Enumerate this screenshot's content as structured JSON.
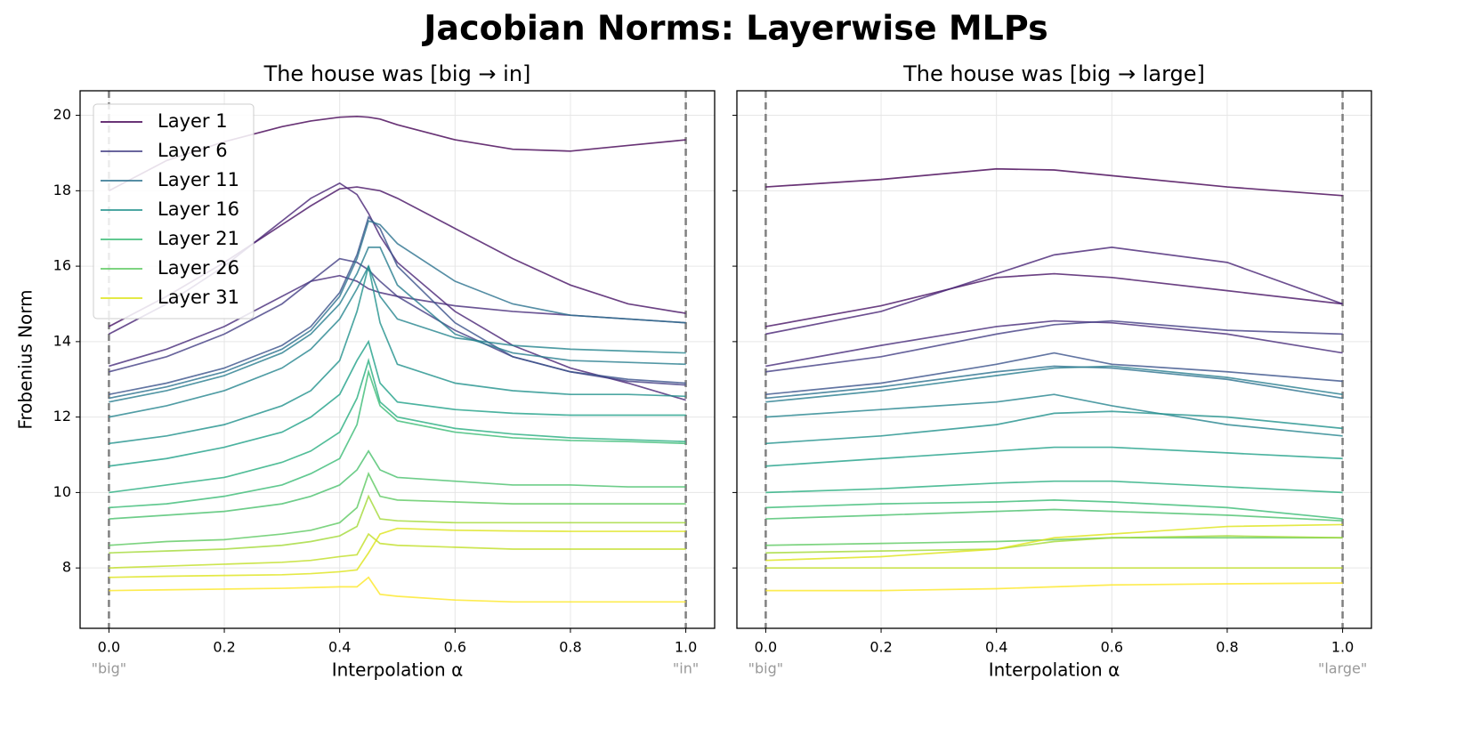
{
  "title": "Jacobian Norms: Layerwise MLPs",
  "chart_data": [
    {
      "type": "line",
      "title": "The house was [big → in]",
      "xlabel": "Interpolation α",
      "ylabel": "Frobenius Norm",
      "xlim": [
        -0.05,
        1.05
      ],
      "ylim": [
        6.4,
        20.65
      ],
      "xticks": [
        {
          "value": 0,
          "label": "0.0"
        },
        {
          "value": 0.2,
          "label": "0.2"
        },
        {
          "value": 0.4,
          "label": "0.4"
        },
        {
          "value": 0.6,
          "label": "0.6"
        },
        {
          "value": 0.8,
          "label": "0.8"
        },
        {
          "value": 1,
          "label": "1.0"
        }
      ],
      "yticks": [
        8,
        10,
        12,
        14,
        16,
        18,
        20
      ],
      "show_ytick_labels": true,
      "grid": true,
      "legend": "upper left",
      "vlines": [
        0,
        1
      ],
      "annotations": [
        {
          "x": 0,
          "text": "\"big\""
        },
        {
          "x": 1,
          "text": "\"in\""
        }
      ],
      "x": [
        0,
        0.1,
        0.2,
        0.3,
        0.35,
        0.4,
        0.43,
        0.45,
        0.47,
        0.5,
        0.6,
        0.7,
        0.8,
        0.9,
        1.0
      ],
      "series": [
        {
          "name": "Layer 1",
          "color": "#440154",
          "values": [
            18.0,
            18.8,
            19.3,
            19.7,
            19.85,
            19.95,
            19.97,
            19.95,
            19.9,
            19.75,
            19.35,
            19.1,
            19.05,
            19.2,
            19.35
          ]
        },
        {
          "color": "#471365",
          "values": [
            14.4,
            15.2,
            16.1,
            17.1,
            17.6,
            18.05,
            18.1,
            18.05,
            18.0,
            17.8,
            17.0,
            16.2,
            15.5,
            15.0,
            14.75
          ]
        },
        {
          "color": "#482475",
          "values": [
            14.2,
            15.0,
            16.0,
            17.2,
            17.8,
            18.2,
            17.9,
            17.4,
            16.8,
            16.1,
            14.8,
            13.9,
            13.3,
            12.9,
            12.45
          ]
        },
        {
          "color": "#472c7a",
          "values": [
            13.35,
            13.8,
            14.4,
            15.2,
            15.6,
            15.75,
            15.6,
            15.4,
            15.3,
            15.2,
            14.95,
            14.8,
            14.7,
            14.6,
            14.5
          ]
        },
        {
          "name": "Layer 6",
          "color": "#433e85",
          "values": [
            13.2,
            13.6,
            14.2,
            15.0,
            15.6,
            16.2,
            16.1,
            15.9,
            15.6,
            15.2,
            14.3,
            13.6,
            13.2,
            12.95,
            12.85
          ]
        },
        {
          "color": "#3b528b",
          "values": [
            12.6,
            12.9,
            13.3,
            13.9,
            14.4,
            15.3,
            16.3,
            17.3,
            17.0,
            16.0,
            14.5,
            13.6,
            13.2,
            13.0,
            12.9
          ]
        },
        {
          "name": "Layer 11",
          "color": "#2c728e",
          "values": [
            12.5,
            12.8,
            13.2,
            13.8,
            14.3,
            15.2,
            16.2,
            17.2,
            17.1,
            16.6,
            15.6,
            15.0,
            14.7,
            14.6,
            14.5
          ]
        },
        {
          "color": "#287d8e",
          "values": [
            12.4,
            12.7,
            13.1,
            13.7,
            14.2,
            15.0,
            15.8,
            16.5,
            16.5,
            15.5,
            14.2,
            13.7,
            13.5,
            13.45,
            13.4
          ]
        },
        {
          "color": "#25858e",
          "values": [
            12.0,
            12.3,
            12.7,
            13.3,
            13.8,
            14.6,
            15.4,
            16.0,
            15.2,
            14.6,
            14.1,
            13.9,
            13.8,
            13.75,
            13.7
          ]
        },
        {
          "name": "Layer 16",
          "color": "#21918c",
          "values": [
            11.3,
            11.5,
            11.8,
            12.3,
            12.7,
            13.5,
            14.8,
            16.0,
            14.5,
            13.4,
            12.9,
            12.7,
            12.6,
            12.6,
            12.55
          ]
        },
        {
          "color": "#1fa088",
          "values": [
            10.7,
            10.9,
            11.2,
            11.6,
            12.0,
            12.6,
            13.5,
            14.0,
            12.9,
            12.4,
            12.2,
            12.1,
            12.05,
            12.05,
            12.05
          ]
        },
        {
          "color": "#28ae80",
          "values": [
            10.0,
            10.2,
            10.4,
            10.8,
            11.1,
            11.6,
            12.5,
            13.5,
            12.4,
            12.0,
            11.7,
            11.55,
            11.45,
            11.4,
            11.35
          ]
        },
        {
          "name": "Layer 21",
          "color": "#3bbb75",
          "values": [
            9.6,
            9.7,
            9.9,
            10.2,
            10.5,
            10.9,
            11.8,
            13.2,
            12.3,
            11.9,
            11.6,
            11.45,
            11.38,
            11.35,
            11.3
          ]
        },
        {
          "color": "#4ac16d",
          "values": [
            9.3,
            9.4,
            9.5,
            9.7,
            9.9,
            10.2,
            10.6,
            11.1,
            10.6,
            10.4,
            10.3,
            10.2,
            10.2,
            10.15,
            10.15
          ]
        },
        {
          "name": "Layer 26",
          "color": "#5ec962",
          "values": [
            8.6,
            8.7,
            8.75,
            8.9,
            9.0,
            9.2,
            9.6,
            10.5,
            9.9,
            9.8,
            9.75,
            9.7,
            9.7,
            9.7,
            9.7
          ]
        },
        {
          "color": "#a2da37",
          "values": [
            8.4,
            8.45,
            8.5,
            8.6,
            8.7,
            8.85,
            9.1,
            9.9,
            9.3,
            9.25,
            9.2,
            9.2,
            9.2,
            9.2,
            9.2
          ]
        },
        {
          "color": "#c0df25",
          "values": [
            8.0,
            8.05,
            8.1,
            8.15,
            8.2,
            8.3,
            8.35,
            8.9,
            8.65,
            8.6,
            8.55,
            8.5,
            8.5,
            8.5,
            8.5
          ]
        },
        {
          "name": "Layer 31",
          "color": "#dde318",
          "values": [
            7.75,
            7.78,
            7.8,
            7.82,
            7.85,
            7.9,
            7.95,
            8.4,
            8.9,
            9.05,
            9.0,
            8.98,
            8.97,
            8.97,
            8.97
          ]
        },
        {
          "color": "#fde725",
          "values": [
            7.4,
            7.42,
            7.44,
            7.46,
            7.48,
            7.5,
            7.5,
            7.75,
            7.3,
            7.25,
            7.15,
            7.1,
            7.1,
            7.1,
            7.1
          ]
        }
      ]
    },
    {
      "type": "line",
      "title": "The house was [big → large]",
      "xlabel": "Interpolation α",
      "xlim": [
        -0.05,
        1.05
      ],
      "ylim": [
        6.4,
        20.65
      ],
      "xticks": [
        {
          "value": 0,
          "label": "0.0"
        },
        {
          "value": 0.2,
          "label": "0.2"
        },
        {
          "value": 0.4,
          "label": "0.4"
        },
        {
          "value": 0.6,
          "label": "0.6"
        },
        {
          "value": 0.8,
          "label": "0.8"
        },
        {
          "value": 1,
          "label": "1.0"
        }
      ],
      "yticks": [
        8,
        10,
        12,
        14,
        16,
        18,
        20
      ],
      "show_ytick_labels": false,
      "grid": true,
      "vlines": [
        0,
        1
      ],
      "annotations": [
        {
          "x": 0,
          "text": "\"big\""
        },
        {
          "x": 1,
          "text": "\"large\""
        }
      ],
      "x": [
        0,
        0.2,
        0.4,
        0.5,
        0.6,
        0.8,
        1.0
      ],
      "series": [
        {
          "color": "#440154",
          "values": [
            18.1,
            18.3,
            18.58,
            18.55,
            18.4,
            18.1,
            17.87
          ]
        },
        {
          "color": "#471365",
          "values": [
            14.4,
            14.95,
            15.7,
            15.8,
            15.7,
            15.35,
            15.0
          ]
        },
        {
          "color": "#482475",
          "values": [
            14.2,
            14.8,
            15.8,
            16.3,
            16.5,
            16.1,
            15.0
          ]
        },
        {
          "color": "#472c7a",
          "values": [
            13.35,
            13.9,
            14.4,
            14.55,
            14.5,
            14.2,
            13.7
          ]
        },
        {
          "color": "#433e85",
          "values": [
            13.2,
            13.6,
            14.2,
            14.45,
            14.55,
            14.3,
            14.2
          ]
        },
        {
          "color": "#3b528b",
          "values": [
            12.6,
            12.9,
            13.4,
            13.7,
            13.4,
            13.2,
            12.95
          ]
        },
        {
          "color": "#2c728e",
          "values": [
            12.5,
            12.8,
            13.2,
            13.35,
            13.3,
            13.0,
            12.5
          ]
        },
        {
          "color": "#287d8e",
          "values": [
            12.4,
            12.7,
            13.1,
            13.3,
            13.35,
            13.05,
            12.6
          ]
        },
        {
          "color": "#25858e",
          "values": [
            12.0,
            12.2,
            12.4,
            12.6,
            12.3,
            11.8,
            11.5
          ]
        },
        {
          "color": "#21918c",
          "values": [
            11.3,
            11.5,
            11.8,
            12.1,
            12.15,
            12.0,
            11.7
          ]
        },
        {
          "color": "#1fa088",
          "values": [
            10.7,
            10.9,
            11.1,
            11.2,
            11.2,
            11.05,
            10.9
          ]
        },
        {
          "color": "#28ae80",
          "values": [
            10.0,
            10.1,
            10.25,
            10.3,
            10.3,
            10.15,
            10.0
          ]
        },
        {
          "color": "#3bbb75",
          "values": [
            9.6,
            9.7,
            9.75,
            9.8,
            9.75,
            9.6,
            9.3
          ]
        },
        {
          "color": "#4ac16d",
          "values": [
            9.3,
            9.4,
            9.5,
            9.55,
            9.5,
            9.4,
            9.25
          ]
        },
        {
          "color": "#5ec962",
          "values": [
            8.6,
            8.65,
            8.7,
            8.75,
            8.8,
            8.8,
            8.8
          ]
        },
        {
          "color": "#a2da37",
          "values": [
            8.4,
            8.45,
            8.5,
            8.7,
            8.8,
            8.85,
            8.8
          ]
        },
        {
          "color": "#c0df25",
          "values": [
            8.0,
            8.0,
            8.0,
            8.0,
            8.0,
            8.0,
            8.0
          ]
        },
        {
          "color": "#dde318",
          "values": [
            8.2,
            8.3,
            8.5,
            8.8,
            8.9,
            9.1,
            9.15
          ]
        },
        {
          "color": "#fde725",
          "values": [
            7.4,
            7.4,
            7.45,
            7.5,
            7.55,
            7.58,
            7.6
          ]
        }
      ]
    }
  ]
}
